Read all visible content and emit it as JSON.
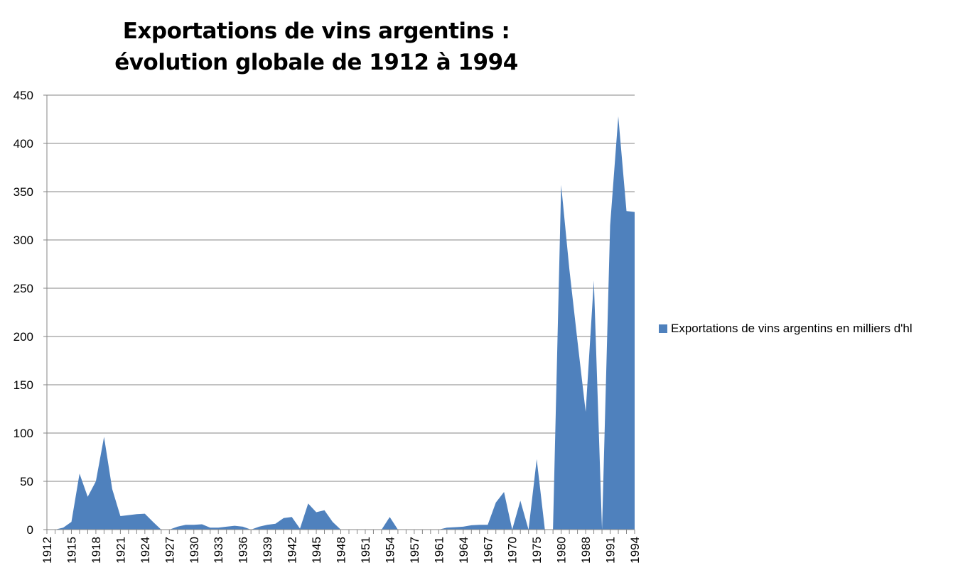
{
  "chart_data": {
    "type": "area",
    "title": [
      "Exportations de vins argentins :",
      "évolution globale de 1912 à 1994"
    ],
    "xlabel": "",
    "ylabel": "",
    "ylim": [
      0,
      450
    ],
    "yticks": [
      0,
      50,
      100,
      150,
      200,
      250,
      300,
      350,
      400,
      450
    ],
    "grid": true,
    "legend_position": "right",
    "color": "#4f81bd",
    "categories": [
      "1912",
      "1913",
      "1914",
      "1915",
      "1916",
      "1917",
      "1918",
      "1919",
      "1920",
      "1921",
      "1922",
      "1923",
      "1924",
      "1925",
      "1926",
      "1927",
      "1928",
      "1929",
      "1930",
      "1931",
      "1932",
      "1933",
      "1934",
      "1935",
      "1936",
      "1937",
      "1938",
      "1939",
      "1940",
      "1941",
      "1942",
      "1943",
      "1944",
      "1945",
      "1946",
      "1947",
      "1948",
      "1949",
      "1950",
      "1951",
      "1952",
      "1953",
      "1954",
      "1955",
      "1956",
      "1957",
      "1958",
      "1959",
      "1961",
      "1962",
      "1963",
      "1964",
      "1965",
      "1966",
      "1967",
      "1968",
      "1969",
      "1970",
      "1971",
      "1973",
      "1975",
      "1976",
      "1977",
      "1980",
      "1981",
      "1984",
      "1988",
      "1989",
      "1990",
      "1991",
      "1992",
      "1993",
      "1994"
    ],
    "tick_labels": [
      "1912",
      "1915",
      "1918",
      "1921",
      "1924",
      "1927",
      "1930",
      "1933",
      "1936",
      "1939",
      "1942",
      "1945",
      "1948",
      "1951",
      "1954",
      "1957",
      "1961",
      "1964",
      "1967",
      "1970",
      "1975",
      "1980",
      "1988",
      "1991",
      "1994"
    ],
    "series": [
      {
        "name": "Exportations de vins argentins en milliers d'hl",
        "values": [
          0,
          0,
          2,
          8,
          58,
          34,
          50,
          96,
          42,
          14,
          15,
          16,
          16.5,
          8,
          0,
          0,
          3,
          5,
          5,
          5.5,
          2,
          2,
          3,
          4,
          3,
          0,
          3,
          5,
          6,
          12,
          13,
          1,
          27,
          18,
          20,
          8,
          0,
          0,
          0,
          0,
          0,
          0,
          13,
          0,
          0,
          0,
          0,
          0,
          0,
          2,
          2.5,
          3,
          4.5,
          5,
          5,
          28,
          39,
          0,
          30,
          0,
          73,
          0,
          0,
          357,
          270,
          195,
          122,
          258,
          0,
          315,
          428,
          330,
          329
        ]
      }
    ]
  }
}
